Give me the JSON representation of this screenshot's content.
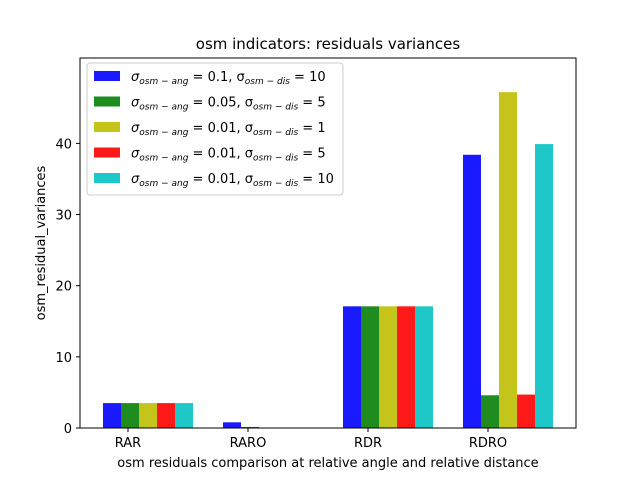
{
  "chart_data": {
    "type": "bar",
    "title": "osm indicators: residuals variances",
    "xlabel": "osm residuals comparison at relative angle and relative distance",
    "ylabel": "osm_residual_variances",
    "ylim": [
      0,
      52
    ],
    "yticks": [
      0,
      10,
      20,
      30,
      40
    ],
    "categories": [
      "RAR",
      "RARO",
      "RDR",
      "RDRO"
    ],
    "legend_position": "top-left",
    "series": [
      {
        "name": "σ_osm-ang = 0.1, σ_osm-dis = 10",
        "ang": "0.1",
        "dis": "10",
        "color": "#1a1aff",
        "values": [
          3.5,
          0.8,
          17.1,
          38.4
        ]
      },
      {
        "name": "σ_osm-ang = 0.05, σ_osm-dis = 5",
        "ang": "0.05",
        "dis": "5",
        "color": "#1e8c1e",
        "values": [
          3.5,
          0.15,
          17.1,
          4.6
        ]
      },
      {
        "name": "σ_osm-ang = 0.01, σ_osm-dis = 1",
        "ang": "0.01",
        "dis": "1",
        "color": "#c4c41a",
        "values": [
          3.5,
          0.0,
          17.1,
          47.2
        ]
      },
      {
        "name": "σ_osm-ang = 0.01, σ_osm-dis = 5",
        "ang": "0.01",
        "dis": "5",
        "color": "#ff1a1a",
        "values": [
          3.5,
          0.0,
          17.1,
          4.7
        ]
      },
      {
        "name": "σ_osm-ang = 0.01, σ_osm-dis = 10",
        "ang": "0.01",
        "dis": "10",
        "color": "#1ec8c8",
        "values": [
          3.5,
          0.0,
          17.1,
          39.9
        ]
      }
    ]
  }
}
